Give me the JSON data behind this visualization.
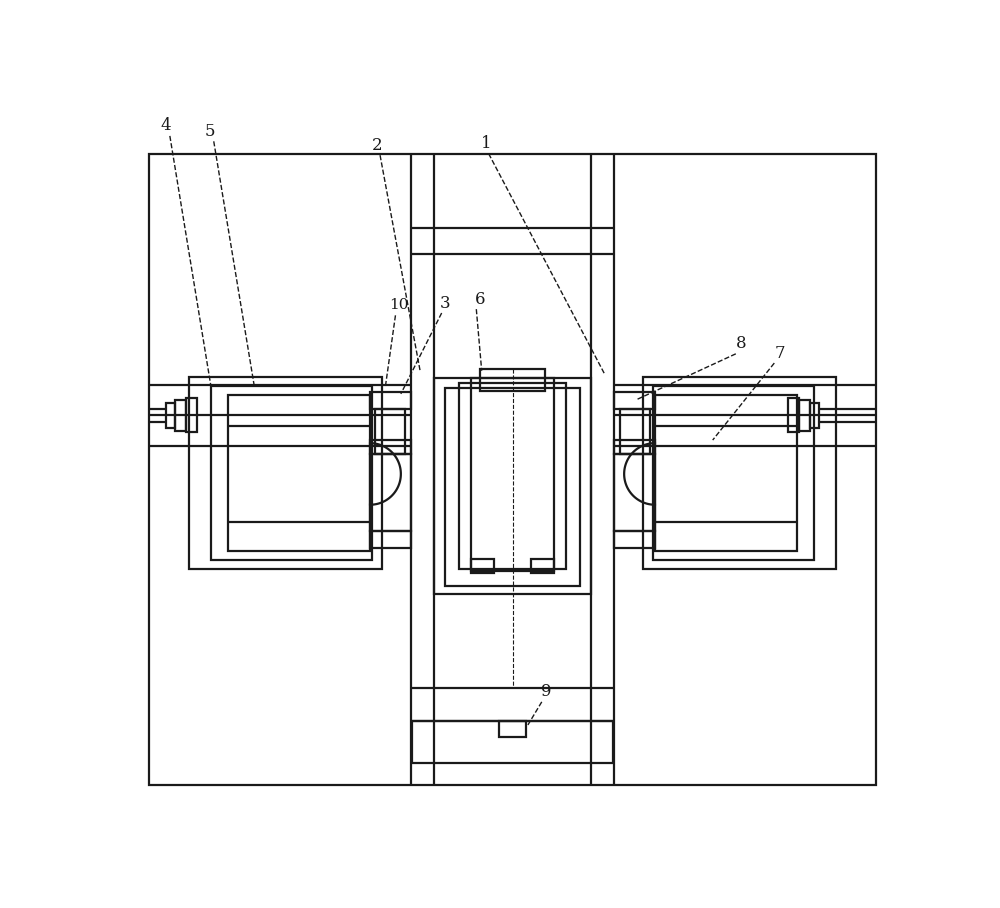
{
  "bg": "#ffffff",
  "lc": "#1a1a1a",
  "lw": 1.6,
  "tlw": 1.0
}
